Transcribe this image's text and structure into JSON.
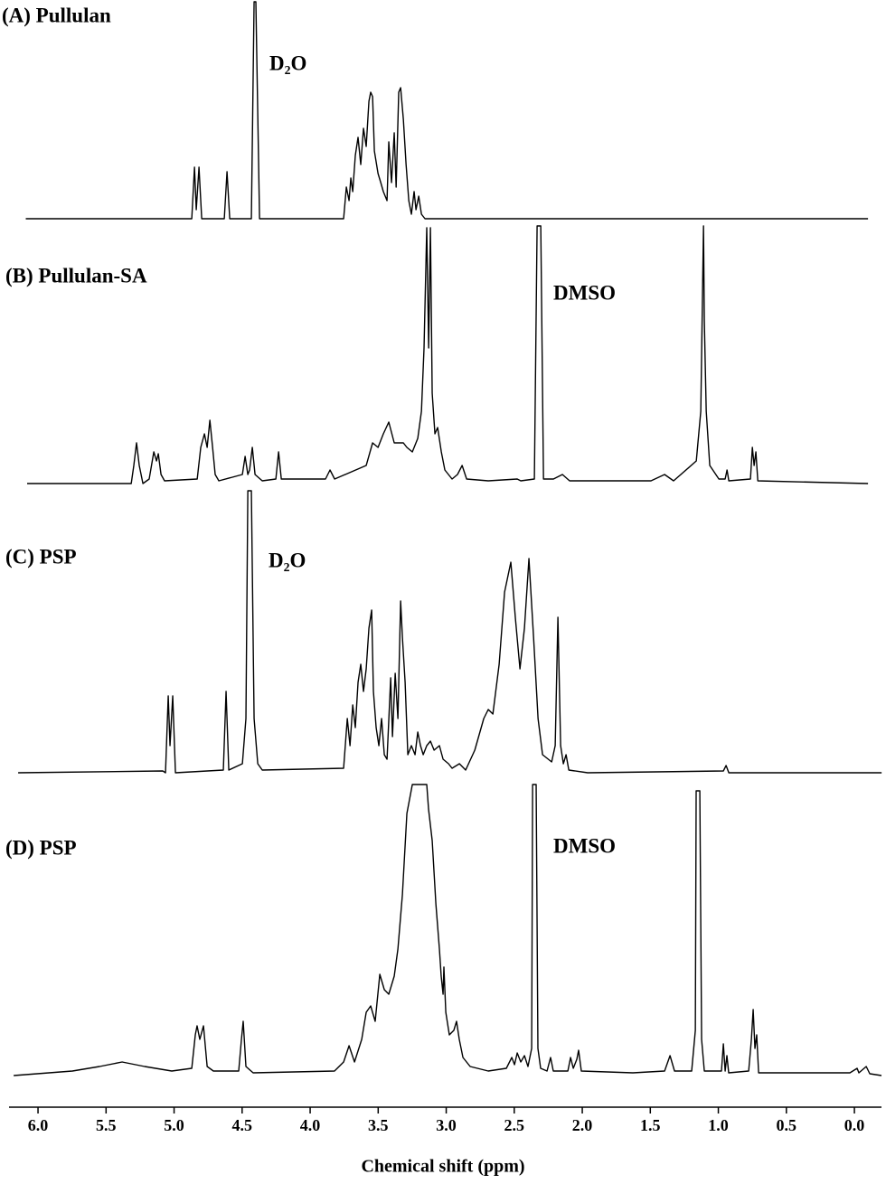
{
  "chart_data": {
    "type": "line",
    "x_label": "Chemical shift (ppm)",
    "xlim": [
      6.213,
      -0.199
    ],
    "xticks": [
      {
        "value": 6,
        "label": "6.0"
      },
      {
        "value": 5.5,
        "label": "5.5"
      },
      {
        "value": 5,
        "label": "5.0"
      },
      {
        "value": 4.5,
        "label": "4.5"
      },
      {
        "value": 4,
        "label": "4.0"
      },
      {
        "value": 3.5,
        "label": "3.5"
      },
      {
        "value": 3,
        "label": "3.0"
      },
      {
        "value": 2.5,
        "label": "2.5"
      },
      {
        "value": 2,
        "label": "2.0"
      },
      {
        "value": 1.5,
        "label": "1.5"
      },
      {
        "value": 1,
        "label": "1.0"
      },
      {
        "value": 0.5,
        "label": "0.5"
      },
      {
        "value": 0,
        "label": "0.0"
      }
    ],
    "ylim": [
      0,
      330
    ],
    "series": [
      {
        "name": "(A) Pullulan",
        "annotation": "D₂O",
        "color": "#000000",
        "x": [
          6.09,
          4.87,
          4.85,
          4.837,
          4.817,
          4.797,
          4.631,
          4.611,
          4.591,
          4.432,
          4.412,
          4.399,
          4.372,
          3.754,
          3.734,
          3.714,
          3.701,
          3.687,
          3.668,
          3.648,
          3.628,
          3.608,
          3.588,
          3.568,
          3.555,
          3.541,
          3.528,
          3.501,
          3.481,
          3.462,
          3.435,
          3.422,
          3.402,
          3.382,
          3.368,
          3.349,
          3.335,
          3.315,
          3.295,
          3.275,
          3.256,
          3.236,
          3.222,
          3.202,
          3.182,
          3.156,
          -0.1
        ],
        "values": [
          0,
          0,
          57,
          10,
          57,
          0,
          0,
          52,
          0,
          0,
          240,
          240,
          0,
          0,
          35,
          20,
          45,
          30,
          70,
          90,
          60,
          100,
          80,
          130,
          140,
          135,
          75,
          50,
          40,
          30,
          20,
          85,
          40,
          95,
          35,
          140,
          145,
          110,
          60,
          20,
          5,
          30,
          10,
          25,
          5,
          0,
          0
        ]
      },
      {
        "name": "(B) Pullulan-SA",
        "annotation": "DMSO",
        "color": "#000000",
        "x": [
          6.08,
          5.315,
          5.296,
          5.276,
          5.256,
          5.229,
          5.183,
          5.149,
          5.129,
          5.116,
          5.096,
          5.07,
          4.83,
          4.804,
          4.777,
          4.757,
          4.737,
          4.717,
          4.698,
          4.671,
          4.498,
          4.478,
          4.458,
          4.445,
          4.425,
          4.405,
          4.352,
          4.252,
          4.232,
          4.212,
          3.887,
          3.854,
          3.82,
          3.588,
          3.541,
          3.501,
          3.462,
          3.422,
          3.382,
          3.355,
          3.315,
          3.289,
          3.249,
          3.209,
          3.182,
          3.163,
          3.143,
          3.129,
          3.116,
          3.103,
          3.083,
          3.063,
          3.036,
          3.01,
          2.957,
          2.917,
          2.883,
          2.85,
          2.691,
          2.478,
          2.452,
          2.352,
          2.332,
          2.305,
          2.285,
          2.212,
          2.146,
          2.093,
          1.495,
          1.395,
          1.329,
          1.162,
          1.129,
          1.109,
          1.103,
          1.089,
          1.063,
          0.996,
          0.95,
          0.936,
          0.923,
          0.764,
          0.75,
          0.737,
          0.724,
          0.71,
          -0.1
        ],
        "values": [
          0,
          0,
          20,
          45,
          20,
          0,
          5,
          35,
          25,
          33,
          10,
          3,
          5,
          40,
          55,
          40,
          70,
          40,
          10,
          3,
          10,
          30,
          10,
          15,
          40,
          10,
          3,
          5,
          35,
          5,
          5,
          15,
          5,
          20,
          45,
          40,
          55,
          68,
          45,
          45,
          45,
          40,
          35,
          50,
          80,
          150,
          283,
          150,
          283,
          100,
          55,
          62,
          35,
          15,
          5,
          10,
          20,
          5,
          3,
          5,
          3,
          5,
          285,
          285,
          5,
          5,
          10,
          3,
          3,
          10,
          3,
          25,
          80,
          285,
          180,
          80,
          20,
          5,
          5,
          15,
          3,
          5,
          40,
          20,
          35,
          3,
          0
        ]
      },
      {
        "name": "(C) PSP",
        "annotation": "D₂O",
        "color": "#000000",
        "x": [
          6.146,
          5.083,
          5.063,
          5.043,
          5.03,
          5.01,
          4.99,
          4.638,
          4.618,
          4.598,
          4.498,
          4.472,
          4.458,
          4.432,
          4.412,
          4.385,
          4.352,
          3.754,
          3.727,
          3.707,
          3.687,
          3.668,
          3.648,
          3.628,
          3.608,
          3.588,
          3.568,
          3.548,
          3.535,
          3.515,
          3.495,
          3.475,
          3.455,
          3.435,
          3.408,
          3.395,
          3.375,
          3.355,
          3.335,
          3.322,
          3.302,
          3.282,
          3.256,
          3.229,
          3.209,
          3.189,
          3.169,
          3.143,
          3.116,
          3.089,
          3.05,
          3.023,
          2.983,
          2.957,
          2.903,
          2.857,
          2.79,
          2.724,
          2.691,
          2.657,
          2.611,
          2.571,
          2.525,
          2.491,
          2.458,
          2.425,
          2.392,
          2.358,
          2.325,
          2.292,
          2.225,
          2.199,
          2.179,
          2.159,
          2.139,
          2.119,
          2.099,
          1.96,
          0.963,
          0.943,
          0.923,
          -0.2
        ],
        "values": [
          0,
          2,
          0,
          85,
          30,
          85,
          0,
          3,
          90,
          3,
          10,
          60,
          312,
          312,
          60,
          10,
          3,
          5,
          60,
          30,
          75,
          50,
          100,
          120,
          90,
          115,
          160,
          180,
          90,
          50,
          30,
          60,
          20,
          15,
          105,
          40,
          110,
          60,
          190,
          150,
          100,
          20,
          30,
          20,
          45,
          30,
          20,
          30,
          35,
          25,
          30,
          15,
          10,
          5,
          10,
          3,
          25,
          60,
          70,
          65,
          120,
          200,
          233,
          170,
          115,
          160,
          237,
          150,
          60,
          20,
          12,
          30,
          172,
          30,
          10,
          20,
          3,
          0,
          2,
          8,
          0,
          0
        ]
      },
      {
        "name": "(D) PSP",
        "annotation": "DMSO",
        "color": "#000000",
        "x": [
          6.179,
          5.747,
          5.548,
          5.382,
          5.216,
          5.017,
          4.87,
          4.844,
          4.831,
          4.811,
          4.784,
          4.757,
          4.711,
          4.525,
          4.505,
          4.492,
          4.472,
          4.419,
          3.821,
          3.754,
          3.714,
          3.674,
          3.621,
          3.588,
          3.555,
          3.522,
          3.488,
          3.455,
          3.422,
          3.382,
          3.355,
          3.322,
          3.289,
          3.249,
          3.143,
          3.13,
          3.103,
          3.076,
          3.05,
          3.037,
          3.023,
          3.017,
          3.003,
          2.977,
          2.944,
          2.924,
          2.904,
          2.877,
          2.824,
          2.691,
          2.558,
          2.518,
          2.498,
          2.478,
          2.452,
          2.425,
          2.399,
          2.372,
          2.365,
          2.339,
          2.326,
          2.306,
          2.259,
          2.233,
          2.213,
          2.106,
          2.086,
          2.066,
          2.04,
          2.027,
          2.007,
          1.628,
          1.395,
          1.355,
          1.322,
          1.196,
          1.169,
          1.163,
          1.136,
          1.123,
          1.103,
          0.977,
          0.963,
          0.95,
          0.937,
          0.924,
          0.777,
          0.757,
          0.744,
          0.731,
          0.718,
          0.704,
          0.033,
          -0.02,
          -0.033,
          -0.087,
          -0.113,
          -0.199
        ],
        "values": [
          0,
          5,
          10,
          15,
          10,
          5,
          8,
          45,
          55,
          40,
          55,
          10,
          5,
          5,
          40,
          60,
          10,
          3,
          5,
          15,
          33,
          15,
          40,
          70,
          77,
          60,
          112,
          95,
          90,
          110,
          140,
          200,
          290,
          322,
          322,
          295,
          260,
          190,
          140,
          110,
          90,
          120,
          70,
          45,
          50,
          60,
          40,
          20,
          10,
          5,
          8,
          20,
          12,
          25,
          15,
          22,
          10,
          30,
          322,
          322,
          30,
          8,
          5,
          20,
          5,
          5,
          20,
          8,
          18,
          28,
          5,
          3,
          5,
          22,
          5,
          5,
          50,
          315,
          315,
          40,
          5,
          5,
          35,
          5,
          22,
          3,
          5,
          40,
          73,
          30,
          45,
          3,
          3,
          8,
          3,
          10,
          2,
          0
        ]
      }
    ]
  }
}
